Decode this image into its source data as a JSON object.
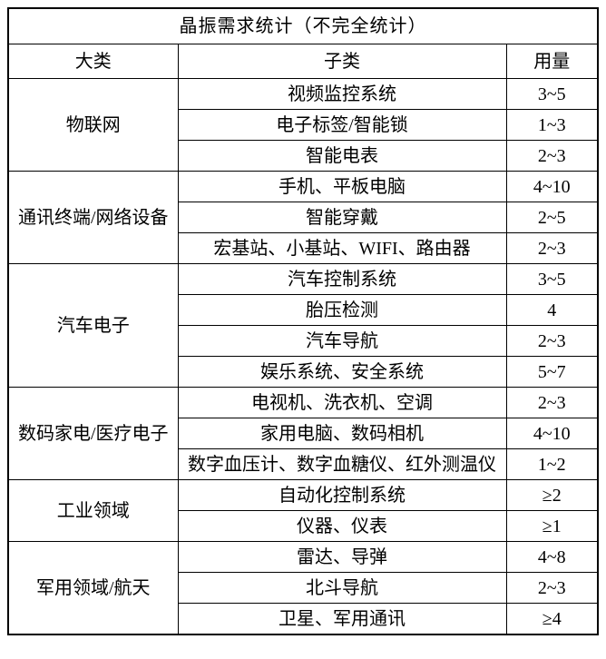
{
  "table": {
    "title": "晶振需求统计（不完全统计）",
    "columns": [
      {
        "label": "大类"
      },
      {
        "label": "子类"
      },
      {
        "label": "用量"
      }
    ],
    "groups": [
      {
        "category": "物联网",
        "rows": [
          {
            "subcategory": "视频监控系统",
            "usage": "3~5"
          },
          {
            "subcategory": "电子标签/智能锁",
            "usage": "1~3"
          },
          {
            "subcategory": "智能电表",
            "usage": "2~3"
          }
        ]
      },
      {
        "category": "通讯终端/网络设备",
        "rows": [
          {
            "subcategory": "手机、平板电脑",
            "usage": "4~10"
          },
          {
            "subcategory": "智能穿戴",
            "usage": "2~5"
          },
          {
            "subcategory": "宏基站、小基站、WIFI、路由器",
            "usage": "2~3"
          }
        ]
      },
      {
        "category": "汽车电子",
        "rows": [
          {
            "subcategory": "汽车控制系统",
            "usage": "3~5"
          },
          {
            "subcategory": "胎压检测",
            "usage": "4"
          },
          {
            "subcategory": "汽车导航",
            "usage": "2~3"
          },
          {
            "subcategory": "娱乐系统、安全系统",
            "usage": "5~7"
          }
        ]
      },
      {
        "category": "数码家电/医疗电子",
        "rows": [
          {
            "subcategory": "电视机、洗衣机、空调",
            "usage": "2~3"
          },
          {
            "subcategory": "家用电脑、数码相机",
            "usage": "4~10"
          },
          {
            "subcategory": "数字血压计、数字血糖仪、红外测温仪",
            "usage": "1~2"
          }
        ]
      },
      {
        "category": "工业领域",
        "rows": [
          {
            "subcategory": "自动化控制系统",
            "usage": "≥2"
          },
          {
            "subcategory": "仪器、仪表",
            "usage": "≥1"
          }
        ]
      },
      {
        "category": "军用领域/航天",
        "rows": [
          {
            "subcategory": "雷达、导弹",
            "usage": "4~8"
          },
          {
            "subcategory": "北斗导航",
            "usage": "2~3"
          },
          {
            "subcategory": "卫星、军用通讯",
            "usage": "≥4"
          }
        ]
      }
    ]
  },
  "colors": {
    "border": "#000000",
    "text": "#000000",
    "background": "#ffffff"
  }
}
